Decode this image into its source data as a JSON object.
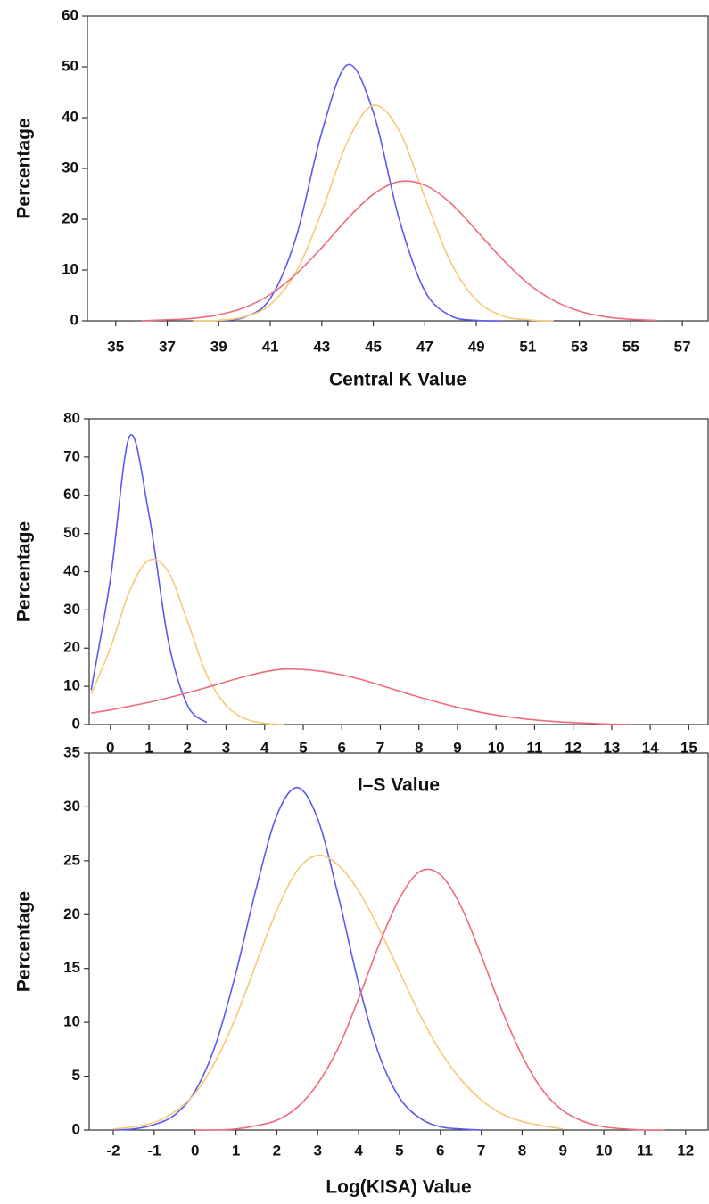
{
  "chart_data": [
    {
      "type": "line",
      "x_label": "Central K Value",
      "y_label": "Percentage",
      "x": [
        36,
        37,
        38,
        39,
        40,
        41,
        42,
        43,
        44,
        45,
        46,
        47,
        48,
        49,
        50,
        51,
        52,
        53,
        54,
        55,
        56
      ],
      "series": [
        {
          "color": "#5a5af0",
          "values": [
            null,
            null,
            null,
            0.1,
            0.7,
            4.4,
            16.4,
            37.1,
            50.4,
            41.1,
            20.1,
            5.9,
            1.0,
            0.1,
            0,
            null,
            null,
            null,
            null,
            null,
            null
          ]
        },
        {
          "color": "#f7c978",
          "values": [
            null,
            null,
            0,
            0.1,
            0.8,
            3.2,
            9.6,
            21.5,
            35.3,
            42.4,
            37.5,
            24.3,
            11.6,
            4.1,
            1.0,
            0.2,
            0,
            null,
            null,
            null,
            null
          ]
        },
        {
          "color": "#ef6b7b",
          "values": [
            0,
            0.2,
            0.5,
            1.2,
            2.6,
            5.2,
            9.2,
            14.4,
            20.1,
            24.9,
            27.4,
            26.7,
            23.2,
            17.8,
            12.2,
            7.4,
            4.0,
            1.9,
            0.8,
            0.3,
            0.1
          ]
        }
      ],
      "xlim": [
        33.9,
        58
      ],
      "xticks": [
        35,
        37,
        39,
        41,
        43,
        45,
        47,
        49,
        51,
        53,
        55,
        57
      ],
      "ylim": [
        0,
        60
      ],
      "yticks": [
        0,
        10,
        20,
        30,
        40,
        50,
        60
      ]
    },
    {
      "type": "line",
      "x_label": "I–S Value",
      "y_label": "Percentage",
      "x": [
        -0.5,
        0,
        0.5,
        1,
        1.5,
        2,
        2.5,
        3,
        3.5,
        4,
        4.5,
        5,
        5.5,
        6,
        6.5,
        7,
        7.5,
        8,
        8.5,
        9,
        9.5,
        10,
        10.5,
        11,
        11.5,
        12,
        12.5,
        13,
        13.5,
        14,
        14.5,
        15
      ],
      "series": [
        {
          "color": "#5a5af0",
          "values": [
            9,
            38,
            75.5,
            55,
            22,
            5,
            0.5,
            null,
            null,
            null,
            null,
            null,
            null,
            null,
            null,
            null,
            null,
            null,
            null,
            null,
            null,
            null,
            null,
            null,
            null,
            null,
            null,
            null,
            null,
            null,
            null,
            null
          ]
        },
        {
          "color": "#f7c978",
          "values": [
            8,
            20,
            35,
            43,
            40,
            27,
            13,
            5,
            1.5,
            0.3,
            0,
            null,
            null,
            null,
            null,
            null,
            null,
            null,
            null,
            null,
            null,
            null,
            null,
            null,
            null,
            null,
            null,
            null,
            null,
            null,
            null,
            null
          ]
        },
        {
          "color": "#ef6b7b",
          "values": [
            3,
            3.8,
            4.8,
            5.8,
            7,
            8.3,
            9.7,
            11.2,
            12.6,
            13.8,
            14.5,
            14.4,
            13.9,
            13,
            11.8,
            10.3,
            8.7,
            7.2,
            5.8,
            4.5,
            3.4,
            2.5,
            1.8,
            1.2,
            0.8,
            0.5,
            0.3,
            0.1,
            0,
            null,
            null,
            null
          ]
        }
      ],
      "xlim": [
        -0.55,
        15.5
      ],
      "xticks": [
        0,
        1,
        2,
        3,
        4,
        5,
        6,
        7,
        8,
        9,
        10,
        11,
        12,
        13,
        14,
        15
      ],
      "ylim": [
        0,
        80
      ],
      "yticks": [
        0,
        10,
        20,
        30,
        40,
        50,
        60,
        70,
        80
      ]
    },
    {
      "type": "line",
      "x_label": "Log(KISA) Value",
      "y_label": "Percentage",
      "x": [
        -2,
        -1.5,
        -1,
        -0.5,
        0,
        0.5,
        1,
        1.5,
        2,
        2.5,
        3,
        3.5,
        4,
        4.5,
        5,
        5.5,
        6,
        6.5,
        7,
        7.5,
        8,
        8.5,
        9,
        9.5,
        10,
        10.5,
        11,
        11.5
      ],
      "series": [
        {
          "color": "#5a5af0",
          "values": [
            0,
            0.1,
            0.5,
            1.4,
            3.6,
            7.9,
            14.6,
            22.5,
            29.2,
            31.8,
            28.9,
            21.8,
            13.6,
            7.0,
            3.0,
            1.1,
            0.3,
            0.1,
            0,
            null,
            null,
            null,
            null,
            null,
            null,
            null,
            null,
            null
          ]
        },
        {
          "color": "#f7c978",
          "values": [
            0.1,
            0.3,
            0.7,
            1.7,
            3.4,
            6.4,
            10.5,
            15.5,
            20.4,
            24.1,
            25.5,
            24.6,
            22.2,
            18.7,
            14.7,
            10.7,
            7.3,
            4.7,
            2.8,
            1.5,
            0.8,
            0.4,
            0.1,
            null,
            null,
            null,
            null,
            null
          ]
        },
        {
          "color": "#ef6b7b",
          "values": [
            null,
            null,
            null,
            null,
            0,
            0,
            0.1,
            0.4,
            0.9,
            2.1,
            4.3,
            7.6,
            12.2,
            17.2,
            21.5,
            24.0,
            23.7,
            20.8,
            16.2,
            11.2,
            6.9,
            3.7,
            1.8,
            0.8,
            0.3,
            0.1,
            0,
            0
          ]
        }
      ],
      "xlim": [
        -2.59,
        12.55
      ],
      "xticks": [
        -2,
        -1,
        0,
        1,
        2,
        3,
        4,
        5,
        6,
        7,
        8,
        9,
        10,
        11,
        12
      ],
      "ylim": [
        0,
        35
      ],
      "yticks": [
        0,
        5,
        10,
        15,
        20,
        25,
        30,
        35
      ]
    }
  ]
}
